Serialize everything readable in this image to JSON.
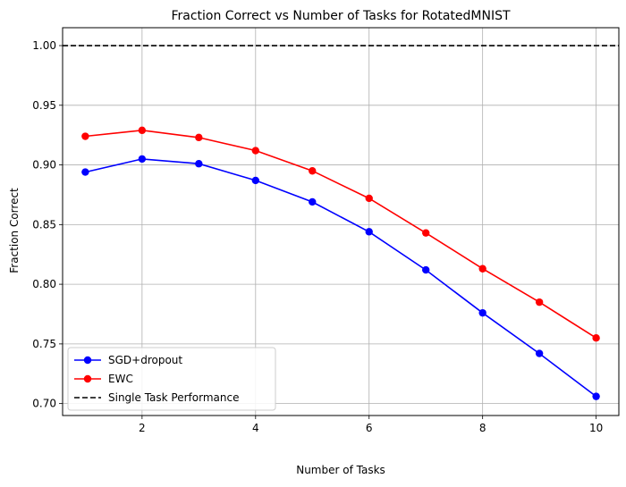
{
  "chart_data": {
    "type": "line",
    "title": "Fraction Correct vs Number of Tasks for RotatedMNIST",
    "xlabel": "Number of Tasks",
    "ylabel": "Fraction Correct",
    "x": [
      1,
      2,
      3,
      4,
      5,
      6,
      7,
      8,
      9,
      10
    ],
    "xlim": [
      0.6,
      10.4
    ],
    "ylim": [
      0.69,
      1.015
    ],
    "xticks": [
      2,
      4,
      6,
      8,
      10
    ],
    "yticks": [
      0.7,
      0.75,
      0.8,
      0.85,
      0.9,
      0.95,
      1.0
    ],
    "xtick_labels": [
      "2",
      "4",
      "6",
      "8",
      "10"
    ],
    "ytick_labels": [
      "0.70",
      "0.75",
      "0.80",
      "0.85",
      "0.90",
      "0.95",
      "1.00"
    ],
    "grid": true,
    "legend_position": "lower-left",
    "series": [
      {
        "name": "SGD+dropout",
        "color": "#0000ff",
        "marker": "circle",
        "values": [
          0.894,
          0.905,
          0.901,
          0.887,
          0.869,
          0.844,
          0.812,
          0.776,
          0.742,
          0.706
        ]
      },
      {
        "name": "EWC",
        "color": "#ff0000",
        "marker": "circle",
        "values": [
          0.924,
          0.929,
          0.923,
          0.912,
          0.895,
          0.872,
          0.843,
          0.813,
          0.785,
          0.755
        ]
      }
    ],
    "reference_lines": [
      {
        "name": "Single Task Performance",
        "y": 1.0,
        "color": "#000000",
        "style": "dashed"
      }
    ]
  }
}
